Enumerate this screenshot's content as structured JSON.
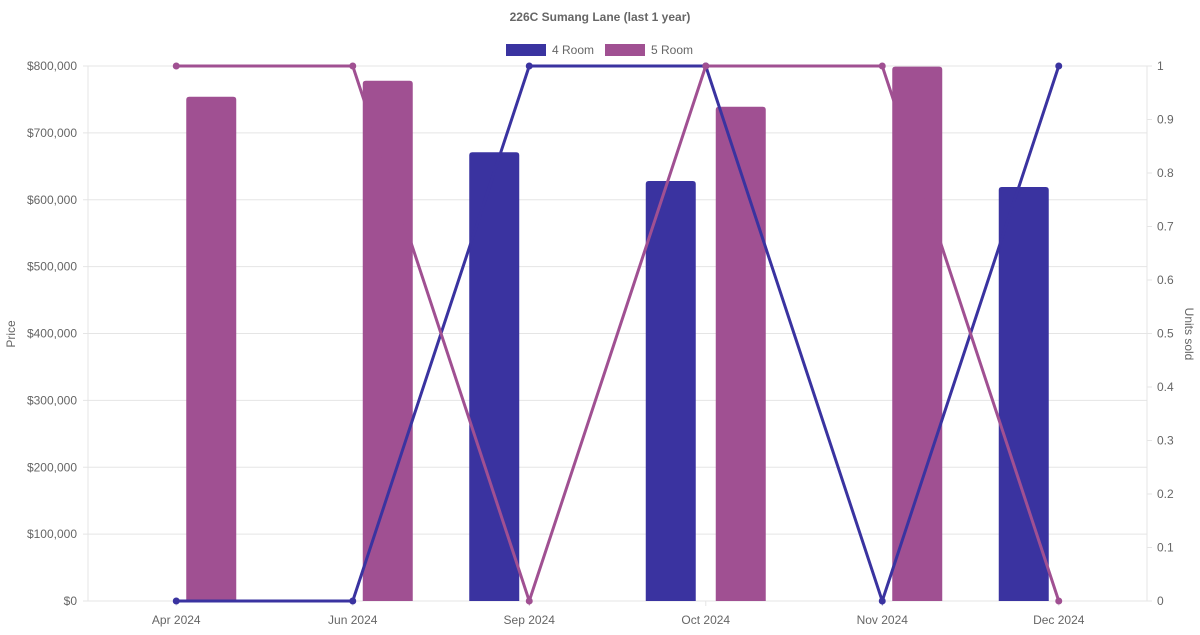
{
  "chart_data": {
    "type": "bar",
    "title": "226C Sumang Lane (last 1 year)",
    "categories": [
      "Apr 2024",
      "Jun 2024",
      "Sep 2024",
      "Oct 2024",
      "Nov 2024",
      "Dec 2024"
    ],
    "ylabel": "Price",
    "y2label": "Units sold",
    "ylim": [
      0,
      800000
    ],
    "y2lim": [
      0,
      1
    ],
    "yticks": [
      "$0",
      "$100,000",
      "$200,000",
      "$300,000",
      "$400,000",
      "$500,000",
      "$600,000",
      "$700,000",
      "$800,000"
    ],
    "y2ticks": [
      "0",
      "0.1",
      "0.2",
      "0.3",
      "0.4",
      "0.5",
      "0.6",
      "0.7",
      "0.8",
      "0.9",
      "1"
    ],
    "legend_position": "top",
    "series": [
      {
        "name": "4 Room",
        "color": "#3a33a0",
        "price": [
          null,
          null,
          671000,
          628000,
          null,
          619000
        ],
        "units": [
          0,
          0,
          1,
          1,
          0,
          1
        ]
      },
      {
        "name": "5 Room",
        "color": "#a05092",
        "price": [
          754000,
          778000,
          null,
          739000,
          799000,
          null
        ],
        "units": [
          1,
          1,
          0,
          1,
          1,
          0
        ]
      }
    ],
    "grid": true
  }
}
